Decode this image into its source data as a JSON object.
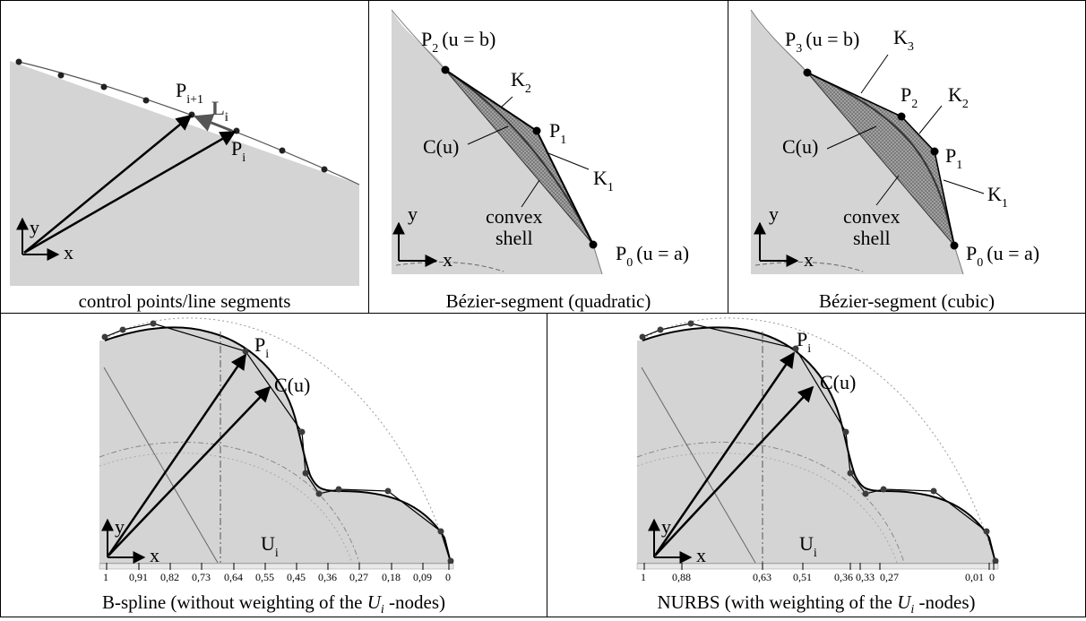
{
  "panels": {
    "p1": {
      "caption": "control points/line segments",
      "labels": {
        "pi1_main": "P",
        "pi1_sub": "i+1",
        "li_main": "L",
        "li_sub": "i",
        "pi_main": "P",
        "pi_sub": "i",
        "y": "y",
        "x": "x"
      }
    },
    "p2": {
      "caption": "Bézier-segment (quadratic)",
      "labels": {
        "p2_main": "P",
        "p2_sub": "2",
        "p2_rest": "(u = b)",
        "k2_main": "K",
        "k2_sub": "2",
        "p1_main": "P",
        "p1_sub": "1",
        "cu": "C(u)",
        "k1_main": "K",
        "k1_sub": "1",
        "convex": "convex",
        "shell": "shell",
        "p0_main": "P",
        "p0_sub": "0",
        "p0_rest": "(u = a)",
        "y": "y",
        "x": "x"
      }
    },
    "p3": {
      "caption": "Bézier-segment (cubic)",
      "labels": {
        "p3_main": "P",
        "p3_sub": "3",
        "p3_rest": "(u = b)",
        "k3_main": "K",
        "k3_sub": "3",
        "p2_main": "P",
        "p2_sub": "2",
        "k2_main": "K",
        "k2_sub": "2",
        "cu": "C(u)",
        "p1_main": "P",
        "p1_sub": "1",
        "k1_main": "K",
        "k1_sub": "1",
        "convex": "convex",
        "shell": "shell",
        "p0_main": "P",
        "p0_sub": "0",
        "p0_rest": "(u = a)",
        "y": "y",
        "x": "x"
      }
    },
    "p4": {
      "caption_pre": "B-spline (without weighting of the ",
      "caption_var": "U",
      "caption_sub": "i",
      "caption_post": " -nodes)",
      "labels": {
        "pi_main": "P",
        "pi_sub": "i",
        "cu": "C(u)",
        "ui_main": "U",
        "ui_sub": "i",
        "y": "y",
        "x": "x"
      },
      "ticks": [
        "1",
        "0,91",
        "0,82",
        "0,73",
        "0,64",
        "0,55",
        "0,45",
        "0,36",
        "0,27",
        "0,18",
        "0,09",
        "0"
      ]
    },
    "p5": {
      "caption_pre": "NURBS (with weighting of the ",
      "caption_var": "U",
      "caption_sub": "i",
      "caption_post": " -nodes)",
      "labels": {
        "pi_main": "P",
        "pi_sub": "i",
        "cu": "C(u)",
        "ui_main": "U",
        "ui_sub": "i",
        "y": "y",
        "x": "x"
      },
      "ticks": [
        "1",
        "0,88",
        "0,63",
        "0,51",
        "0,36",
        "0,33",
        "0,27",
        "0,01",
        "0"
      ]
    }
  },
  "colors": {
    "fill": "#d4d4d4",
    "hatch": "#8a8a8a",
    "points": "#3c3c3c"
  }
}
